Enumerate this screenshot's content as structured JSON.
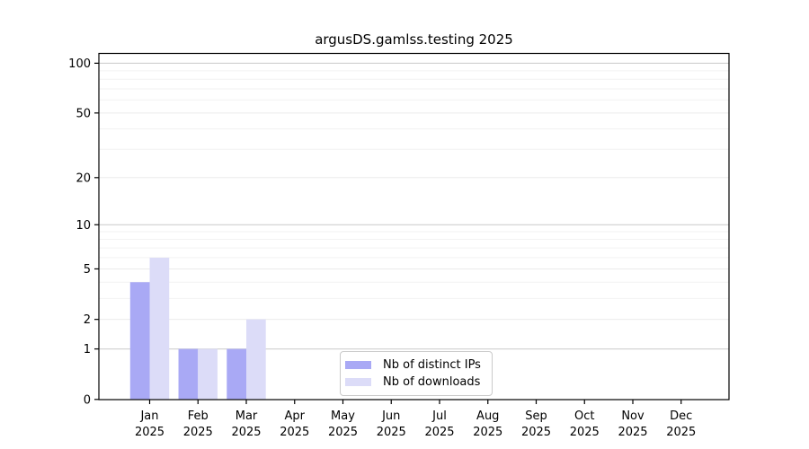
{
  "chart_data": {
    "type": "bar",
    "title": "argusDS.gamlss.testing 2025",
    "categories": [
      "Jan",
      "Feb",
      "Mar",
      "Apr",
      "May",
      "Jun",
      "Jul",
      "Aug",
      "Sep",
      "Oct",
      "Nov",
      "Dec"
    ],
    "category_year_line": "2025",
    "series": [
      {
        "name": "Nb of distinct IPs",
        "color": "#a9a9f5",
        "values": [
          4,
          1,
          1,
          0,
          0,
          0,
          0,
          0,
          0,
          0,
          0,
          0
        ]
      },
      {
        "name": "Nb of downloads",
        "color": "#dcdcf8",
        "values": [
          6,
          1,
          2,
          0,
          0,
          0,
          0,
          0,
          0,
          0,
          0,
          0
        ]
      }
    ],
    "y_ticks": [
      0,
      1,
      2,
      5,
      10,
      20,
      50,
      100
    ],
    "y_scale": "log10(value+1)",
    "ylim": [
      0,
      115
    ],
    "grid": true,
    "grid_major_values": [
      1,
      10,
      100
    ],
    "grid_light_values": [
      2,
      5,
      20,
      50
    ],
    "grid_minor_values": [
      3,
      4,
      6,
      7,
      8,
      9,
      30,
      40,
      60,
      70,
      80,
      90
    ],
    "legend_position": "inside-bottom-center",
    "colors": {
      "axis": "#000000",
      "grid_major": "#c9c9c9",
      "grid_light": "#ebebeb",
      "grid_minor": "#f2f2f2",
      "background": "#ffffff"
    }
  }
}
